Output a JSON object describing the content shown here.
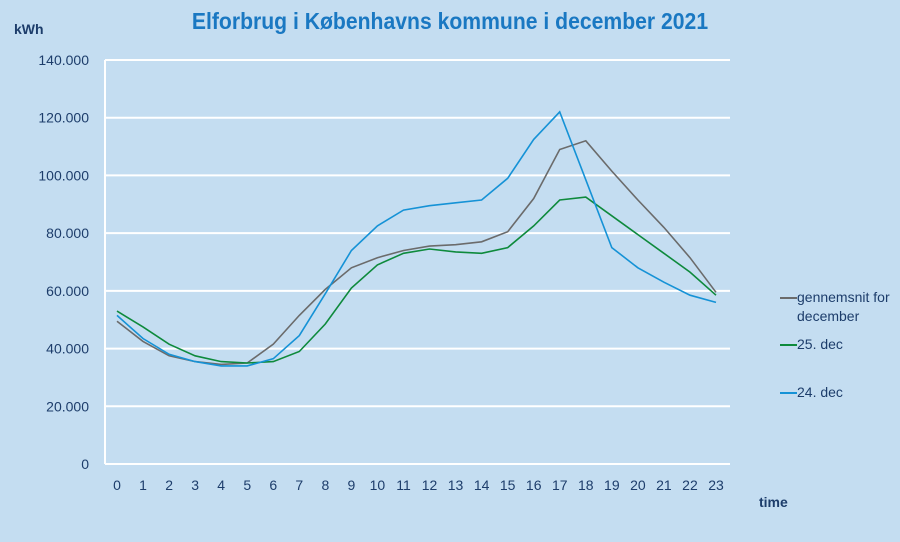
{
  "chart_data": {
    "type": "line",
    "title": "Elforbrug i Københavns kommune i december 2021",
    "ylabel": "kWh",
    "xlabel": "time",
    "ylim": [
      0,
      140000
    ],
    "yticks": [
      "0",
      "20.000",
      "40.000",
      "60.000",
      "80.000",
      "100.000",
      "120.000",
      "140.000"
    ],
    "ytick_values": [
      0,
      20000,
      40000,
      60000,
      80000,
      100000,
      120000,
      140000
    ],
    "x": [
      0,
      1,
      2,
      3,
      4,
      5,
      6,
      7,
      8,
      9,
      10,
      11,
      12,
      13,
      14,
      15,
      16,
      17,
      18,
      19,
      20,
      21,
      22,
      23
    ],
    "grid": true,
    "legend_position": "right",
    "series": [
      {
        "name": "gennemsnit for december",
        "color": "#6b6b6b",
        "values": [
          49500,
          42500,
          37500,
          35500,
          34500,
          35000,
          41500,
          51500,
          60500,
          68000,
          71500,
          74000,
          75500,
          76000,
          77000,
          80500,
          92000,
          109000,
          112000,
          101500,
          91500,
          82000,
          71500,
          59500
        ]
      },
      {
        "name": "25. dec",
        "color": "#0e8a3c",
        "values": [
          53000,
          47500,
          41500,
          37500,
          35500,
          35000,
          35500,
          39000,
          48500,
          61000,
          69000,
          73000,
          74500,
          73500,
          73000,
          75000,
          82500,
          91500,
          92500,
          86000,
          79500,
          73000,
          66500,
          58500
        ]
      },
      {
        "name": "24. dec",
        "color": "#1592d6",
        "values": [
          51500,
          43500,
          38000,
          35500,
          34000,
          34000,
          36500,
          44500,
          59000,
          74000,
          82500,
          88000,
          89500,
          90500,
          91500,
          99000,
          112500,
          122000,
          98500,
          75000,
          68000,
          63000,
          58500,
          56000
        ]
      }
    ]
  }
}
